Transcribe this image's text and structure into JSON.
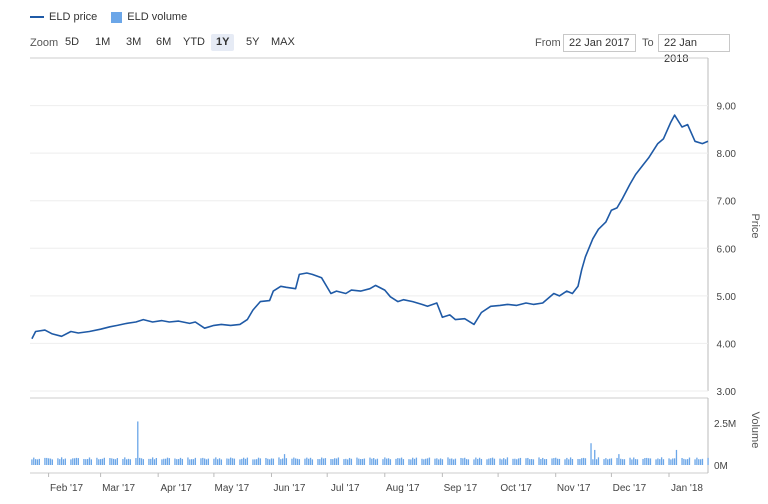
{
  "legend": [
    {
      "label": "ELD price",
      "color": "#1f5aa6"
    },
    {
      "label": "ELD volume",
      "color": "#6ba6e8"
    }
  ],
  "toolbar": {
    "zoom_label": "Zoom",
    "zoom_buttons": [
      "5D",
      "1M",
      "3M",
      "6M",
      "YTD",
      "1Y",
      "5Y",
      "MAX"
    ],
    "active_zoom": "1Y",
    "from_label": "From",
    "from_value": "22 Jan 2017",
    "to_label": "To",
    "to_value": "22 Jan 2018"
  },
  "chart_data": {
    "type": "line",
    "x_range": [
      "2017-01-22",
      "2018-01-22"
    ],
    "x_tick_labels": [
      {
        "label": "Feb '17",
        "date": "2017-02-01"
      },
      {
        "label": "Mar '17",
        "date": "2017-03-01"
      },
      {
        "label": "Apr '17",
        "date": "2017-04-01"
      },
      {
        "label": "May '17",
        "date": "2017-05-01"
      },
      {
        "label": "Jun '17",
        "date": "2017-06-01"
      },
      {
        "label": "Jul '17",
        "date": "2017-07-01"
      },
      {
        "label": "Aug '17",
        "date": "2017-08-01"
      },
      {
        "label": "Sep '17",
        "date": "2017-09-01"
      },
      {
        "label": "Oct '17",
        "date": "2017-10-01"
      },
      {
        "label": "Nov '17",
        "date": "2017-11-01"
      },
      {
        "label": "Dec '17",
        "date": "2017-12-01"
      },
      {
        "label": "Jan '18",
        "date": "2018-01-01"
      }
    ],
    "price": {
      "name": "ELD price",
      "axis_title": "Price",
      "ylim": [
        3.0,
        10.0
      ],
      "y_ticks": [
        "3.00",
        "4.00",
        "5.00",
        "6.00",
        "7.00",
        "8.00",
        "9.00"
      ],
      "color": "#1f5aa6",
      "points": [
        [
          "2017-01-23",
          4.1
        ],
        [
          "2017-01-25",
          4.25
        ],
        [
          "2017-01-30",
          4.28
        ],
        [
          "2017-02-03",
          4.2
        ],
        [
          "2017-02-08",
          4.15
        ],
        [
          "2017-02-13",
          4.25
        ],
        [
          "2017-02-17",
          4.22
        ],
        [
          "2017-02-23",
          4.25
        ],
        [
          "2017-03-01",
          4.3
        ],
        [
          "2017-03-06",
          4.35
        ],
        [
          "2017-03-10",
          4.38
        ],
        [
          "2017-03-15",
          4.42
        ],
        [
          "2017-03-20",
          4.45
        ],
        [
          "2017-03-24",
          4.5
        ],
        [
          "2017-03-29",
          4.45
        ],
        [
          "2017-04-03",
          4.48
        ],
        [
          "2017-04-07",
          4.45
        ],
        [
          "2017-04-12",
          4.47
        ],
        [
          "2017-04-18",
          4.42
        ],
        [
          "2017-04-21",
          4.45
        ],
        [
          "2017-04-26",
          4.32
        ],
        [
          "2017-05-01",
          4.38
        ],
        [
          "2017-05-05",
          4.4
        ],
        [
          "2017-05-10",
          4.38
        ],
        [
          "2017-05-15",
          4.4
        ],
        [
          "2017-05-19",
          4.5
        ],
        [
          "2017-05-22",
          4.7
        ],
        [
          "2017-05-26",
          4.88
        ],
        [
          "2017-05-31",
          4.9
        ],
        [
          "2017-06-02",
          5.1
        ],
        [
          "2017-06-06",
          5.2
        ],
        [
          "2017-06-09",
          5.18
        ],
        [
          "2017-06-14",
          5.15
        ],
        [
          "2017-06-16",
          5.45
        ],
        [
          "2017-06-20",
          5.48
        ],
        [
          "2017-06-23",
          5.45
        ],
        [
          "2017-06-28",
          5.38
        ],
        [
          "2017-07-03",
          5.05
        ],
        [
          "2017-07-06",
          5.1
        ],
        [
          "2017-07-11",
          5.05
        ],
        [
          "2017-07-14",
          5.12
        ],
        [
          "2017-07-19",
          5.1
        ],
        [
          "2017-07-24",
          5.15
        ],
        [
          "2017-07-27",
          5.22
        ],
        [
          "2017-08-01",
          5.12
        ],
        [
          "2017-08-04",
          4.98
        ],
        [
          "2017-08-08",
          4.88
        ],
        [
          "2017-08-11",
          4.92
        ],
        [
          "2017-08-16",
          4.88
        ],
        [
          "2017-08-21",
          4.82
        ],
        [
          "2017-08-24",
          4.78
        ],
        [
          "2017-08-29",
          4.85
        ],
        [
          "2017-09-01",
          4.55
        ],
        [
          "2017-09-05",
          4.6
        ],
        [
          "2017-09-08",
          4.5
        ],
        [
          "2017-09-13",
          4.52
        ],
        [
          "2017-09-18",
          4.4
        ],
        [
          "2017-09-22",
          4.65
        ],
        [
          "2017-09-27",
          4.78
        ],
        [
          "2017-10-02",
          4.8
        ],
        [
          "2017-10-06",
          4.82
        ],
        [
          "2017-10-11",
          4.8
        ],
        [
          "2017-10-16",
          4.85
        ],
        [
          "2017-10-20",
          4.82
        ],
        [
          "2017-10-25",
          4.85
        ],
        [
          "2017-10-31",
          5.05
        ],
        [
          "2017-11-03",
          5.0
        ],
        [
          "2017-11-07",
          5.1
        ],
        [
          "2017-11-10",
          5.05
        ],
        [
          "2017-11-13",
          5.2
        ],
        [
          "2017-11-15",
          5.55
        ],
        [
          "2017-11-17",
          5.82
        ],
        [
          "2017-11-21",
          6.2
        ],
        [
          "2017-11-24",
          6.4
        ],
        [
          "2017-11-28",
          6.55
        ],
        [
          "2017-12-01",
          6.8
        ],
        [
          "2017-12-04",
          6.85
        ],
        [
          "2017-12-07",
          7.05
        ],
        [
          "2017-12-11",
          7.35
        ],
        [
          "2017-12-14",
          7.55
        ],
        [
          "2017-12-18",
          7.75
        ],
        [
          "2017-12-21",
          7.9
        ],
        [
          "2017-12-26",
          8.2
        ],
        [
          "2017-12-29",
          8.3
        ],
        [
          "2018-01-02",
          8.65
        ],
        [
          "2018-01-04",
          8.8
        ],
        [
          "2018-01-08",
          8.55
        ],
        [
          "2018-01-11",
          8.6
        ],
        [
          "2018-01-15",
          8.25
        ],
        [
          "2018-01-19",
          8.2
        ],
        [
          "2018-01-22",
          8.25
        ]
      ]
    },
    "volume": {
      "name": "ELD volume",
      "axis_title": "Volume",
      "ylim": [
        0,
        4000000
      ],
      "y_ticks": [
        {
          "value": 0,
          "label": "0M"
        },
        {
          "value": 2500000,
          "label": "2.5M"
        }
      ],
      "color": "#6ba6e8",
      "baseline": 230000,
      "spikes": [
        [
          "2017-03-21",
          2600000
        ],
        [
          "2017-06-03",
          800000
        ],
        [
          "2017-06-08",
          650000
        ],
        [
          "2017-11-20",
          1300000
        ],
        [
          "2017-11-22",
          900000
        ],
        [
          "2017-12-05",
          650000
        ],
        [
          "2018-01-05",
          900000
        ]
      ]
    },
    "grid": true,
    "legend_position": "top-left"
  }
}
